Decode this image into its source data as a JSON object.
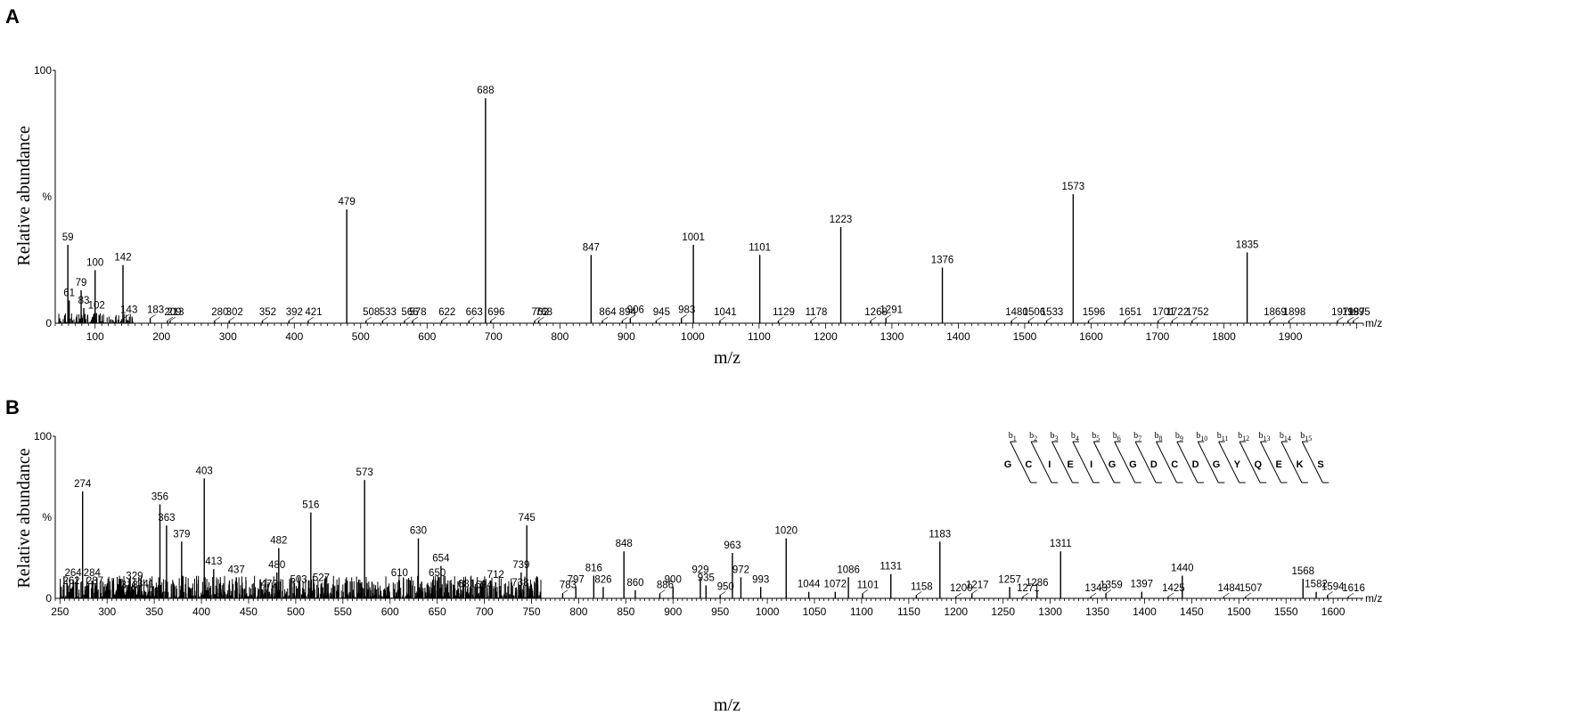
{
  "chart_data": [
    {
      "panel": "A",
      "type": "bar",
      "ylabel": "Relative abundance",
      "xlabel": "m/z",
      "y_axis_ticks": [
        "100",
        "%",
        "0"
      ],
      "x_unit_label": "m/z",
      "xlim": [
        40,
        2010
      ],
      "ylim": [
        0,
        100
      ],
      "xticks": [
        100,
        200,
        300,
        400,
        500,
        600,
        700,
        800,
        900,
        1000,
        1100,
        1200,
        1300,
        1400,
        1500,
        1600,
        1700,
        1800,
        1900
      ],
      "peaks": [
        {
          "x": 59,
          "y": 31
        },
        {
          "x": 61,
          "y": 9
        },
        {
          "x": 79,
          "y": 13
        },
        {
          "x": 83,
          "y": 6
        },
        {
          "x": 100,
          "y": 21
        },
        {
          "x": 102,
          "y": 4
        },
        {
          "x": 142,
          "y": 23
        },
        {
          "x": 143,
          "y": 2
        },
        {
          "x": 183,
          "y": 2
        },
        {
          "x": 209,
          "y": 1
        },
        {
          "x": 213,
          "y": 1
        },
        {
          "x": 280,
          "y": 1
        },
        {
          "x": 302,
          "y": 1
        },
        {
          "x": 352,
          "y": 1
        },
        {
          "x": 392,
          "y": 1
        },
        {
          "x": 421,
          "y": 1
        },
        {
          "x": 479,
          "y": 45
        },
        {
          "x": 508,
          "y": 1
        },
        {
          "x": 533,
          "y": 1
        },
        {
          "x": 566,
          "y": 1
        },
        {
          "x": 578,
          "y": 1
        },
        {
          "x": 622,
          "y": 1
        },
        {
          "x": 663,
          "y": 1
        },
        {
          "x": 688,
          "y": 89
        },
        {
          "x": 696,
          "y": 1
        },
        {
          "x": 762,
          "y": 1
        },
        {
          "x": 768,
          "y": 1
        },
        {
          "x": 847,
          "y": 27
        },
        {
          "x": 864,
          "y": 1
        },
        {
          "x": 894,
          "y": 1
        },
        {
          "x": 906,
          "y": 2
        },
        {
          "x": 945,
          "y": 1
        },
        {
          "x": 983,
          "y": 2
        },
        {
          "x": 1001,
          "y": 31
        },
        {
          "x": 1041,
          "y": 1
        },
        {
          "x": 1101,
          "y": 27
        },
        {
          "x": 1129,
          "y": 1
        },
        {
          "x": 1178,
          "y": 1
        },
        {
          "x": 1223,
          "y": 38
        },
        {
          "x": 1268,
          "y": 1
        },
        {
          "x": 1291,
          "y": 2
        },
        {
          "x": 1376,
          "y": 22
        },
        {
          "x": 1480,
          "y": 1
        },
        {
          "x": 1506,
          "y": 1
        },
        {
          "x": 1533,
          "y": 1
        },
        {
          "x": 1573,
          "y": 51
        },
        {
          "x": 1596,
          "y": 1
        },
        {
          "x": 1651,
          "y": 1
        },
        {
          "x": 1701,
          "y": 1
        },
        {
          "x": 1722,
          "y": 1
        },
        {
          "x": 1752,
          "y": 1
        },
        {
          "x": 1835,
          "y": 28
        },
        {
          "x": 1869,
          "y": 1
        },
        {
          "x": 1898,
          "y": 1
        },
        {
          "x": 1971,
          "y": 1
        },
        {
          "x": 1987,
          "y": 1
        },
        {
          "x": 1995,
          "y": 1
        }
      ]
    },
    {
      "panel": "B",
      "type": "bar",
      "ylabel": "Relative abundance",
      "xlabel": "m/z",
      "y_axis_ticks": [
        "100",
        "%",
        "0"
      ],
      "x_unit_label": "m/z",
      "xlim": [
        245,
        1632
      ],
      "ylim": [
        0,
        100
      ],
      "xticks": [
        250,
        300,
        350,
        400,
        450,
        500,
        550,
        600,
        650,
        700,
        750,
        800,
        850,
        900,
        950,
        1000,
        1050,
        1100,
        1150,
        1200,
        1250,
        1300,
        1350,
        1400,
        1450,
        1500,
        1550,
        1600
      ],
      "peaks": [
        {
          "x": 262,
          "y": 6
        },
        {
          "x": 264,
          "y": 11
        },
        {
          "x": 274,
          "y": 66
        },
        {
          "x": 284,
          "y": 11
        },
        {
          "x": 287,
          "y": 6
        },
        {
          "x": 318,
          "y": 3
        },
        {
          "x": 329,
          "y": 9
        },
        {
          "x": 341,
          "y": 4
        },
        {
          "x": 356,
          "y": 58
        },
        {
          "x": 363,
          "y": 45
        },
        {
          "x": 379,
          "y": 35
        },
        {
          "x": 403,
          "y": 74
        },
        {
          "x": 413,
          "y": 18
        },
        {
          "x": 437,
          "y": 13
        },
        {
          "x": 472,
          "y": 4
        },
        {
          "x": 480,
          "y": 16
        },
        {
          "x": 482,
          "y": 31
        },
        {
          "x": 503,
          "y": 7
        },
        {
          "x": 516,
          "y": 53
        },
        {
          "x": 527,
          "y": 8
        },
        {
          "x": 573,
          "y": 73
        },
        {
          "x": 610,
          "y": 11
        },
        {
          "x": 630,
          "y": 37
        },
        {
          "x": 650,
          "y": 11
        },
        {
          "x": 654,
          "y": 20
        },
        {
          "x": 681,
          "y": 4
        },
        {
          "x": 694,
          "y": 3
        },
        {
          "x": 712,
          "y": 10
        },
        {
          "x": 738,
          "y": 5
        },
        {
          "x": 739,
          "y": 16
        },
        {
          "x": 745,
          "y": 45
        },
        {
          "x": 783,
          "y": 3
        },
        {
          "x": 797,
          "y": 7
        },
        {
          "x": 816,
          "y": 14
        },
        {
          "x": 826,
          "y": 7
        },
        {
          "x": 848,
          "y": 29
        },
        {
          "x": 860,
          "y": 5
        },
        {
          "x": 886,
          "y": 3
        },
        {
          "x": 900,
          "y": 7
        },
        {
          "x": 929,
          "y": 13
        },
        {
          "x": 935,
          "y": 8
        },
        {
          "x": 950,
          "y": 2
        },
        {
          "x": 963,
          "y": 28
        },
        {
          "x": 972,
          "y": 13
        },
        {
          "x": 993,
          "y": 7
        },
        {
          "x": 1020,
          "y": 37
        },
        {
          "x": 1044,
          "y": 4
        },
        {
          "x": 1072,
          "y": 4
        },
        {
          "x": 1086,
          "y": 13
        },
        {
          "x": 1101,
          "y": 3
        },
        {
          "x": 1131,
          "y": 15
        },
        {
          "x": 1158,
          "y": 2
        },
        {
          "x": 1183,
          "y": 35
        },
        {
          "x": 1200,
          "y": 1
        },
        {
          "x": 1217,
          "y": 3
        },
        {
          "x": 1257,
          "y": 7
        },
        {
          "x": 1271,
          "y": 1
        },
        {
          "x": 1286,
          "y": 5
        },
        {
          "x": 1311,
          "y": 29
        },
        {
          "x": 1343,
          "y": 1
        },
        {
          "x": 1359,
          "y": 3
        },
        {
          "x": 1397,
          "y": 4
        },
        {
          "x": 1425,
          "y": 1
        },
        {
          "x": 1440,
          "y": 14
        },
        {
          "x": 1484,
          "y": 1
        },
        {
          "x": 1507,
          "y": 1
        },
        {
          "x": 1568,
          "y": 12
        },
        {
          "x": 1582,
          "y": 4
        },
        {
          "x": 1594,
          "y": 2
        },
        {
          "x": 1616,
          "y": 1
        }
      ],
      "sequence": {
        "residues": [
          "G",
          "C",
          "I",
          "E",
          "I",
          "G",
          "G",
          "D",
          "C",
          "D",
          "G",
          "Y",
          "Q",
          "E",
          "K",
          "S"
        ],
        "b_ions": [
          "1",
          "2",
          "3",
          "4",
          "5",
          "6",
          "7",
          "8",
          "9",
          "10",
          "11",
          "12",
          "13",
          "14",
          "15"
        ]
      }
    }
  ]
}
